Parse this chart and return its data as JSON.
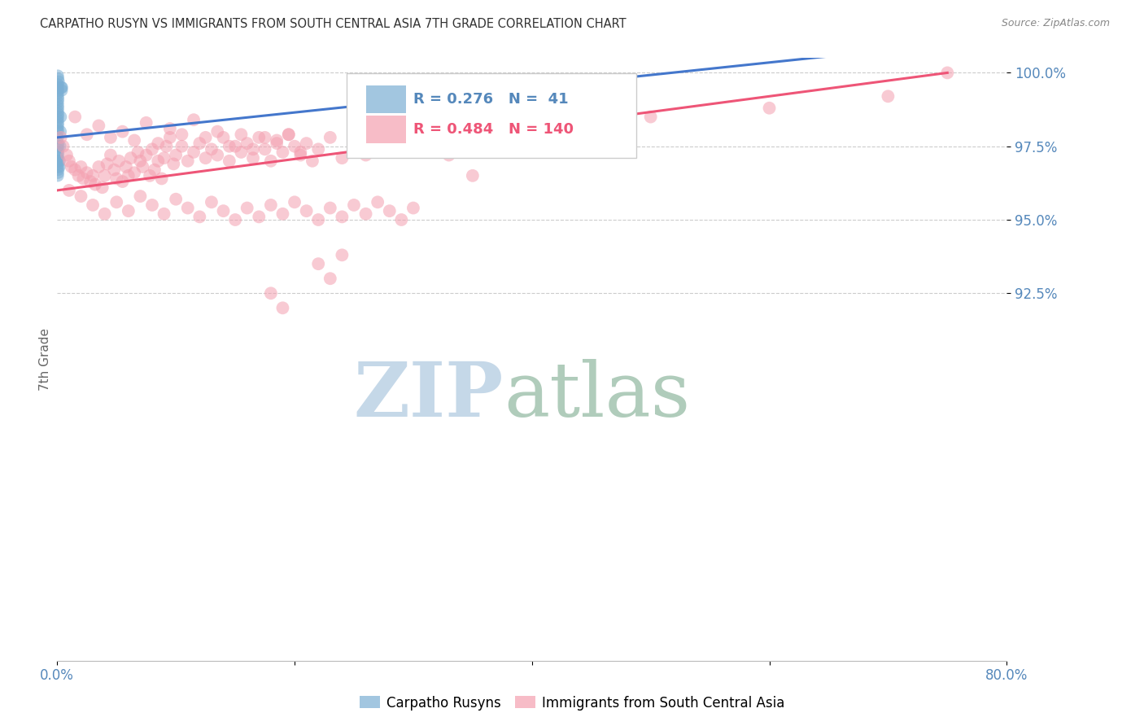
{
  "title": "CARPATHO RUSYN VS IMMIGRANTS FROM SOUTH CENTRAL ASIA 7TH GRADE CORRELATION CHART",
  "source": "Source: ZipAtlas.com",
  "ylabel": "7th Grade",
  "xmin": 0.0,
  "xmax": 80.0,
  "ymin": 80.0,
  "ymax": 100.5,
  "yticks": [
    100.0,
    97.5,
    95.0,
    92.5
  ],
  "ytick_labels": [
    "100.0%",
    "97.5%",
    "95.0%",
    "92.5%"
  ],
  "xticks": [
    0.0,
    20.0,
    40.0,
    60.0,
    80.0
  ],
  "xtick_labels": [
    "0.0%",
    "",
    "",
    "",
    "80.0%"
  ],
  "blue_R": 0.276,
  "blue_N": 41,
  "pink_R": 0.484,
  "pink_N": 140,
  "blue_color": "#7BAFD4",
  "pink_color": "#F4A0B0",
  "blue_line_color": "#4477CC",
  "pink_line_color": "#EE5577",
  "legend_label_blue": "Carpatho Rusyns",
  "legend_label_pink": "Immigrants from South Central Asia",
  "watermark_zip": "ZIP",
  "watermark_atlas": "atlas",
  "watermark_color_zip": "#C5D8E8",
  "watermark_color_atlas": "#B0CCBB",
  "title_color": "#333333",
  "axis_color": "#5588BB",
  "grid_color": "#CCCCCC",
  "background_color": "#FFFFFF",
  "blue_x": [
    0.05,
    0.08,
    0.12,
    0.05,
    0.06,
    0.07,
    0.05,
    0.06,
    0.08,
    0.05,
    0.06,
    0.07,
    0.05,
    0.08,
    0.06,
    0.05,
    0.07,
    0.06,
    0.05,
    0.06,
    0.05,
    0.07,
    0.06,
    0.05,
    0.08,
    0.06,
    0.07,
    0.05,
    0.06,
    0.05,
    0.06,
    0.07,
    0.05,
    0.35,
    0.38,
    0.4,
    0.3,
    0.28,
    0.25,
    0.2,
    0.18
  ],
  "blue_y": [
    99.9,
    99.8,
    99.7,
    99.6,
    99.5,
    99.4,
    99.3,
    99.2,
    99.1,
    99.0,
    98.9,
    98.8,
    98.7,
    98.6,
    98.5,
    98.4,
    98.3,
    98.2,
    98.1,
    98.0,
    97.8,
    97.6,
    97.5,
    97.4,
    97.3,
    97.2,
    97.1,
    97.0,
    96.9,
    96.8,
    96.7,
    96.6,
    96.5,
    99.5,
    99.4,
    99.5,
    98.5,
    98.0,
    97.5,
    97.0,
    96.8
  ],
  "pink_x": [
    0.3,
    0.5,
    0.8,
    1.0,
    1.2,
    1.5,
    1.8,
    2.0,
    2.2,
    2.5,
    2.8,
    3.0,
    3.2,
    3.5,
    3.8,
    4.0,
    4.2,
    4.5,
    4.8,
    5.0,
    5.2,
    5.5,
    5.8,
    6.0,
    6.2,
    6.5,
    6.8,
    7.0,
    7.2,
    7.5,
    7.8,
    8.0,
    8.2,
    8.5,
    8.8,
    9.0,
    9.2,
    9.5,
    9.8,
    10.0,
    10.5,
    11.0,
    11.5,
    12.0,
    12.5,
    13.0,
    13.5,
    14.0,
    14.5,
    15.0,
    15.5,
    16.0,
    16.5,
    17.0,
    17.5,
    18.0,
    18.5,
    19.0,
    19.5,
    20.0,
    20.5,
    21.0,
    21.5,
    22.0,
    23.0,
    24.0,
    25.0,
    26.0,
    27.0,
    28.0,
    29.0,
    30.0,
    31.0,
    32.0,
    33.0,
    34.0,
    35.0,
    36.0,
    38.0,
    40.0,
    1.5,
    2.5,
    3.5,
    4.5,
    5.5,
    6.5,
    7.5,
    8.5,
    9.5,
    10.5,
    11.5,
    12.5,
    13.5,
    14.5,
    15.5,
    16.5,
    17.5,
    18.5,
    19.5,
    20.5,
    1.0,
    2.0,
    3.0,
    4.0,
    5.0,
    6.0,
    7.0,
    8.0,
    9.0,
    10.0,
    11.0,
    12.0,
    13.0,
    14.0,
    15.0,
    16.0,
    17.0,
    18.0,
    19.0,
    20.0,
    21.0,
    22.0,
    23.0,
    24.0,
    25.0,
    26.0,
    27.0,
    28.0,
    29.0,
    30.0,
    22.0,
    23.0,
    24.0,
    18.0,
    19.0,
    50.0,
    60.0,
    70.0,
    75.0,
    35.0
  ],
  "pink_y": [
    97.8,
    97.5,
    97.2,
    97.0,
    96.8,
    96.7,
    96.5,
    96.8,
    96.4,
    96.6,
    96.3,
    96.5,
    96.2,
    96.8,
    96.1,
    96.5,
    96.9,
    97.2,
    96.7,
    96.4,
    97.0,
    96.3,
    96.8,
    96.5,
    97.1,
    96.6,
    97.3,
    97.0,
    96.8,
    97.2,
    96.5,
    97.4,
    96.7,
    97.0,
    96.4,
    97.1,
    97.5,
    97.8,
    96.9,
    97.2,
    97.5,
    97.0,
    97.3,
    97.6,
    97.1,
    97.4,
    97.2,
    97.8,
    97.0,
    97.5,
    97.3,
    97.6,
    97.1,
    97.8,
    97.4,
    97.0,
    97.7,
    97.3,
    97.9,
    97.5,
    97.2,
    97.6,
    97.0,
    97.4,
    97.8,
    97.1,
    97.5,
    97.2,
    97.6,
    97.3,
    97.7,
    97.4,
    97.8,
    97.5,
    97.2,
    97.6,
    97.9,
    97.3,
    98.0,
    98.2,
    98.5,
    97.9,
    98.2,
    97.8,
    98.0,
    97.7,
    98.3,
    97.6,
    98.1,
    97.9,
    98.4,
    97.8,
    98.0,
    97.5,
    97.9,
    97.4,
    97.8,
    97.6,
    97.9,
    97.3,
    96.0,
    95.8,
    95.5,
    95.2,
    95.6,
    95.3,
    95.8,
    95.5,
    95.2,
    95.7,
    95.4,
    95.1,
    95.6,
    95.3,
    95.0,
    95.4,
    95.1,
    95.5,
    95.2,
    95.6,
    95.3,
    95.0,
    95.4,
    95.1,
    95.5,
    95.2,
    95.6,
    95.3,
    95.0,
    95.4,
    93.5,
    93.0,
    93.8,
    92.5,
    92.0,
    98.5,
    98.8,
    99.2,
    100.0,
    96.5
  ]
}
